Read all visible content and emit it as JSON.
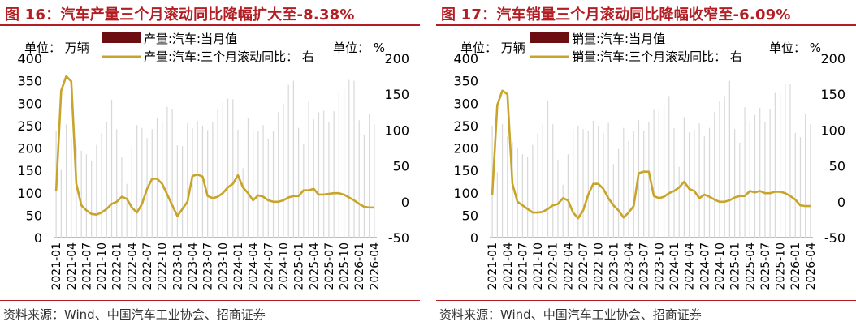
{
  "charts": [
    {
      "title": "图 16：汽车产量三个月滚动同比降幅扩大至-8.38%",
      "source": "资料来源：Wind、中国汽车工业协会、招商证券",
      "left_unit": "单位：  万辆",
      "right_unit": "单位：  %",
      "legend_bar": "产量:汽车:当月值",
      "legend_line": "产量:汽车:三个月滚动同比：  右"
    },
    {
      "title": "图 17：汽车销量三个月滚动同比降幅收窄至-6.09%",
      "source": "资料来源：Wind、中国汽车工业协会、招商证券",
      "left_unit": "单位：  万辆",
      "right_unit": "单位：  %",
      "legend_bar": "销量:汽车:当月值",
      "legend_line": "销量:汽车:三个月滚动同比：  右"
    }
  ],
  "chart_data": [
    {
      "type": "bar+line",
      "y_left_lim": [
        0,
        400
      ],
      "y_left_ticks": [
        0,
        50,
        100,
        150,
        200,
        250,
        300,
        350,
        400
      ],
      "y_right_lim": [
        -50,
        200
      ],
      "y_right_ticks": [
        -50,
        0,
        50,
        100,
        150,
        200
      ],
      "x_tick_labels": [
        "2021-01",
        "2021-04",
        "2021-07",
        "2021-10",
        "2022-01",
        "2022-04",
        "2022-07",
        "2022-10",
        "2023-01",
        "2023-04",
        "2023-07",
        "2023-10",
        "2024-01",
        "2024-04",
        "2024-07",
        "2024-10",
        "2025-01",
        "2025-04",
        "2025-07",
        "2025-10",
        "2026-01",
        "2026-04"
      ],
      "x_tick_index": [
        0,
        3,
        6,
        9,
        12,
        15,
        18,
        21,
        24,
        27,
        30,
        33,
        36,
        39,
        42,
        45,
        48,
        51,
        54,
        57,
        60,
        63
      ],
      "colors": {
        "bar": "#6b0d11",
        "line": "#c8a42a"
      },
      "series": [
        {
          "name": "产量:汽车:当月值",
          "axis": "left",
          "kind": "bar",
          "values": [
            238,
            151,
            253,
            223,
            204,
            194,
            186,
            172,
            207,
            233,
            257,
            308,
            242,
            181,
            120,
            205,
            251,
            245,
            222,
            242,
            268,
            259,
            292,
            286,
            206,
            204,
            255,
            244,
            260,
            250,
            240,
            258,
            286,
            303,
            310,
            309,
            241,
            155,
            268,
            239,
            237,
            251,
            221,
            237,
            280,
            299,
            341,
            350,
            245,
            210,
            303,
            264,
            280,
            283,
            257,
            282,
            327,
            331,
            352,
            350,
            262,
            230,
            276,
            253
          ]
        },
        {
          "name": "产量:汽车:三个月滚动同比",
          "axis": "right",
          "kind": "line",
          "values": [
            15,
            155,
            175,
            168,
            25,
            -5,
            -12,
            -17,
            -18,
            -15,
            -10,
            -3,
            0,
            7,
            4,
            -8,
            -15,
            -3,
            18,
            32,
            32,
            25,
            10,
            -5,
            -20,
            -10,
            0,
            36,
            38,
            35,
            8,
            5,
            7,
            12,
            20,
            25,
            37,
            20,
            12,
            2,
            9,
            7,
            2,
            0,
            0,
            2,
            6,
            8,
            8,
            16,
            16,
            18,
            10,
            10,
            11,
            12,
            12,
            10,
            6,
            2,
            -3,
            -7,
            -8,
            -8
          ]
        }
      ]
    },
    {
      "type": "bar+line",
      "y_left_lim": [
        0,
        400
      ],
      "y_left_ticks": [
        0,
        50,
        100,
        150,
        200,
        250,
        300,
        350,
        400
      ],
      "y_right_lim": [
        -50,
        200
      ],
      "y_right_ticks": [
        -50,
        0,
        50,
        100,
        150,
        200
      ],
      "x_tick_labels": [
        "2021-01",
        "2021-04",
        "2021-07",
        "2021-10",
        "2022-01",
        "2022-04",
        "2022-07",
        "2022-10",
        "2023-01",
        "2023-04",
        "2023-07",
        "2023-10",
        "2024-01",
        "2024-04",
        "2024-07",
        "2024-10",
        "2025-01",
        "2025-04",
        "2025-07",
        "2025-10",
        "2026-01",
        "2026-04"
      ],
      "x_tick_index": [
        0,
        3,
        6,
        9,
        12,
        15,
        18,
        21,
        24,
        27,
        30,
        33,
        36,
        39,
        42,
        45,
        48,
        51,
        54,
        57,
        60,
        63
      ],
      "colors": {
        "bar": "#6b0d11",
        "line": "#c8a42a"
      },
      "series": [
        {
          "name": "销量:汽车:当月值",
          "axis": "left",
          "kind": "bar",
          "values": [
            250,
            146,
            253,
            225,
            213,
            201,
            186,
            180,
            207,
            233,
            253,
            306,
            253,
            174,
            118,
            186,
            242,
            250,
            242,
            238,
            261,
            250,
            233,
            256,
            164,
            198,
            245,
            216,
            238,
            262,
            239,
            259,
            285,
            285,
            297,
            316,
            244,
            158,
            269,
            235,
            241,
            255,
            226,
            245,
            280,
            305,
            316,
            350,
            242,
            212,
            291,
            260,
            274,
            290,
            259,
            286,
            323,
            322,
            343,
            342,
            234,
            224,
            276,
            253
          ]
        },
        {
          "name": "销量:汽车:三个月滚动同比",
          "axis": "right",
          "kind": "line",
          "values": [
            10,
            135,
            155,
            150,
            25,
            0,
            -5,
            -10,
            -15,
            -15,
            -14,
            -10,
            -5,
            -3,
            5,
            2,
            -15,
            -23,
            -12,
            10,
            25,
            25,
            18,
            5,
            -5,
            -12,
            -22,
            -15,
            -6,
            40,
            42,
            42,
            8,
            5,
            7,
            12,
            15,
            20,
            28,
            18,
            15,
            5,
            10,
            7,
            3,
            0,
            0,
            2,
            6,
            8,
            8,
            15,
            13,
            15,
            12,
            12,
            14,
            14,
            12,
            8,
            3,
            -5,
            -6,
            -6
          ]
        }
      ]
    }
  ]
}
